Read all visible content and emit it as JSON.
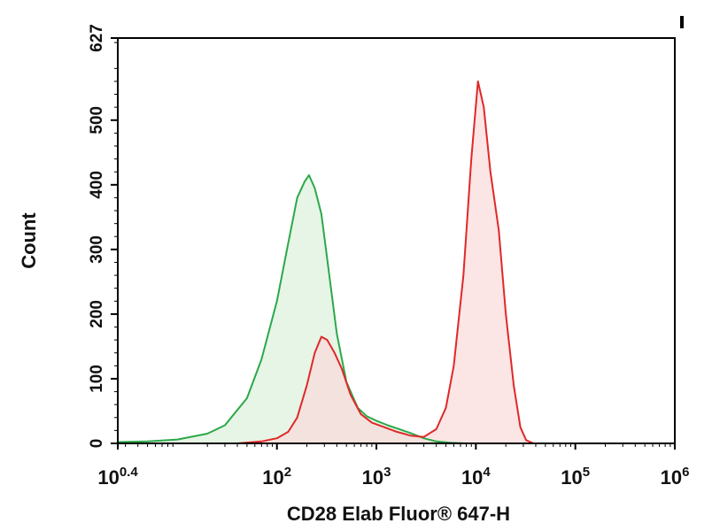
{
  "chart_data": {
    "type": "area",
    "title": "",
    "xlabel": "CD28 Elab Fluor® 647-H",
    "ylabel": "Count",
    "x_scale": "log",
    "xlim": [
      2.512,
      1000000
    ],
    "ylim": [
      0,
      627
    ],
    "x_ticks": [
      {
        "value": 2.512,
        "base": "10",
        "exp": "0.4"
      },
      {
        "value": 100,
        "base": "10",
        "exp": "2"
      },
      {
        "value": 1000,
        "base": "10",
        "exp": "3"
      },
      {
        "value": 10000,
        "base": "10",
        "exp": "4"
      },
      {
        "value": 100000,
        "base": "10",
        "exp": "5"
      },
      {
        "value": 1000000,
        "base": "10",
        "exp": "6"
      }
    ],
    "y_ticks": [
      0,
      100,
      200,
      300,
      400,
      500,
      627
    ],
    "grid": false,
    "legend": "none",
    "series": [
      {
        "color": "#2ca84a",
        "fill": "#e6f5e6",
        "x": [
          2.51,
          5,
          10,
          20,
          30,
          50,
          70,
          100,
          130,
          160,
          190,
          210,
          240,
          280,
          320,
          400,
          500,
          650,
          800,
          1000,
          1300,
          1700,
          2200,
          3000,
          4000,
          5500,
          8000
        ],
        "y": [
          2,
          3,
          6,
          15,
          28,
          70,
          130,
          220,
          310,
          380,
          405,
          415,
          395,
          355,
          285,
          170,
          95,
          55,
          42,
          35,
          28,
          22,
          16,
          8,
          3,
          1,
          0
        ]
      },
      {
        "color": "#e02828",
        "fill": "#fadada",
        "x": [
          40,
          70,
          100,
          130,
          160,
          200,
          240,
          280,
          320,
          380,
          450,
          550,
          700,
          900,
          1200,
          1600,
          2200,
          3000,
          4000,
          5000,
          6000,
          7500,
          9000,
          10500,
          12000,
          14000,
          17000,
          20000,
          24000,
          28000,
          32000,
          38000
        ],
        "y": [
          0,
          3,
          8,
          18,
          40,
          90,
          140,
          165,
          160,
          140,
          115,
          75,
          45,
          32,
          25,
          18,
          12,
          10,
          22,
          55,
          120,
          260,
          440,
          560,
          520,
          420,
          330,
          200,
          90,
          25,
          5,
          0
        ]
      }
    ]
  }
}
